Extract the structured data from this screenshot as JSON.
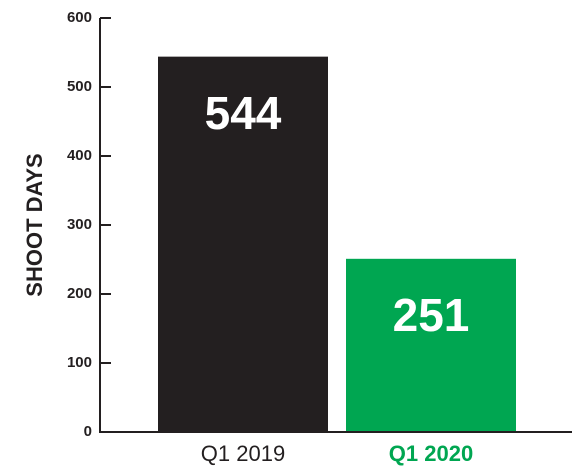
{
  "chart_data": {
    "type": "bar",
    "y_label": "SHOOT DAYS",
    "categories": [
      "Q1 2019",
      "Q1 2020"
    ],
    "values": [
      544,
      251
    ],
    "colors": [
      "#231f20",
      "#00a651"
    ],
    "category_colors": [
      "#231f20",
      "#00a651"
    ],
    "category_bold": [
      false,
      true
    ],
    "ylim": [
      0,
      600
    ],
    "yticks": [
      0,
      100,
      200,
      300,
      400,
      500,
      600
    ],
    "grid": false,
    "data_labels": true
  }
}
